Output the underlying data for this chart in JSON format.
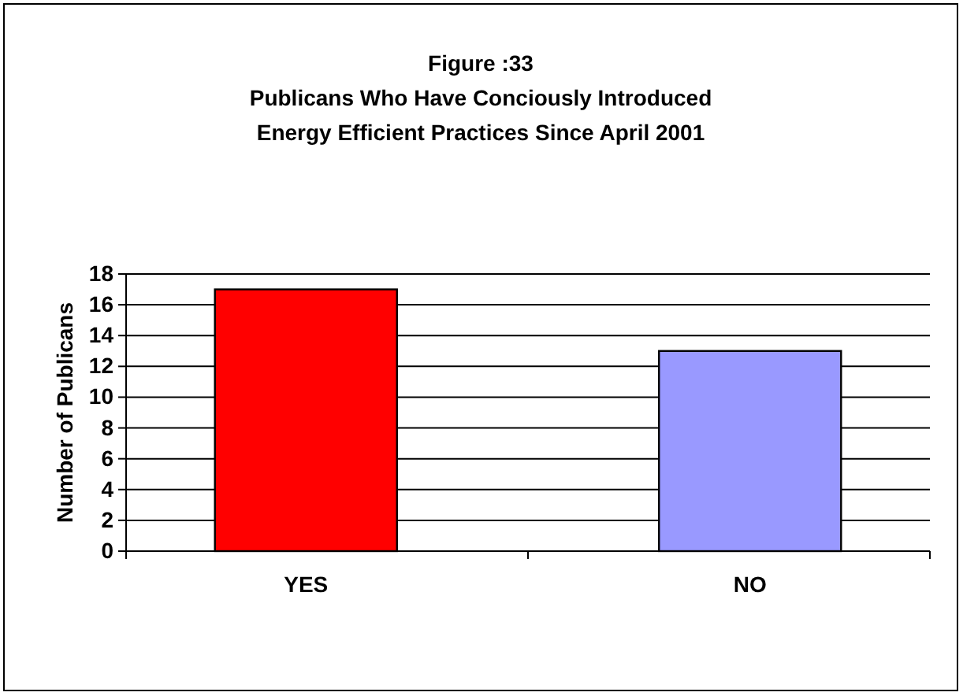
{
  "chart_data": {
    "type": "bar",
    "title": "Figure :33\nPublicans Who Have Conciously Introduced\nEnergy Efficient Practices Since April 2001",
    "ylabel": "Number of Publicans",
    "categories": [
      "YES",
      "NO"
    ],
    "values": [
      17,
      13
    ],
    "colors": [
      "#ff0000",
      "#9999ff"
    ],
    "ylim": [
      0,
      18
    ],
    "yticks": [
      0,
      2,
      4,
      6,
      8,
      10,
      12,
      14,
      16,
      18
    ],
    "grid": "y"
  }
}
